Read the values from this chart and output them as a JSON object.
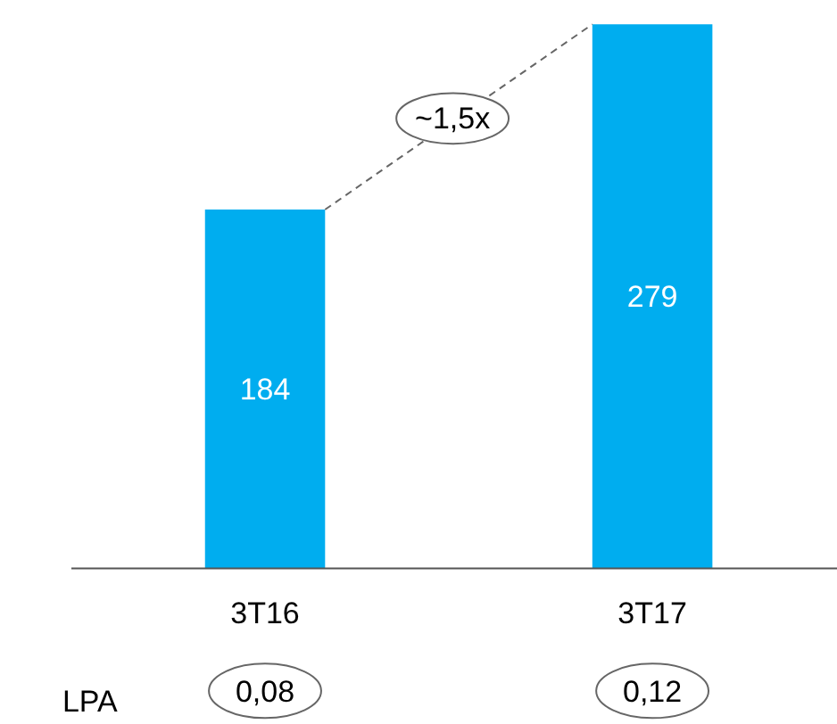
{
  "chart_data": {
    "type": "bar",
    "categories": [
      "3T16",
      "3T17"
    ],
    "values": [
      184,
      279
    ],
    "color": "#00adef",
    "data_labels": true,
    "grid": false,
    "annotations": [
      "~1,5x",
      "LPA",
      "0,08",
      "0,12"
    ]
  }
}
